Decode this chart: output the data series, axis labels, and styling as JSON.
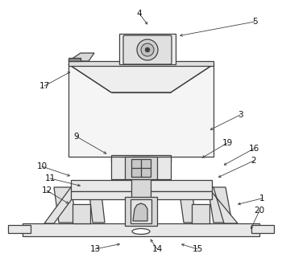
{
  "bg_color": "#ffffff",
  "lc": "#404040",
  "lw": 0.9,
  "figsize": [
    3.5,
    3.36
  ],
  "dpi": 100,
  "labels": [
    [
      "4",
      173,
      17,
      185,
      33
    ],
    [
      "5",
      316,
      27,
      220,
      45
    ],
    [
      "17",
      55,
      107,
      90,
      88
    ],
    [
      "3",
      298,
      143,
      258,
      163
    ],
    [
      "9",
      95,
      170,
      135,
      193
    ],
    [
      "19",
      282,
      178,
      248,
      198
    ],
    [
      "16",
      315,
      185,
      275,
      207
    ],
    [
      "2",
      315,
      200,
      268,
      222
    ],
    [
      "10",
      52,
      207,
      90,
      220
    ],
    [
      "11",
      62,
      222,
      103,
      232
    ],
    [
      "12",
      58,
      237,
      88,
      255
    ],
    [
      "1",
      325,
      247,
      292,
      255
    ],
    [
      "13",
      118,
      310,
      152,
      303
    ],
    [
      "14",
      195,
      310,
      185,
      295
    ],
    [
      "15",
      245,
      310,
      222,
      303
    ],
    [
      "20",
      322,
      262,
      310,
      288
    ]
  ]
}
